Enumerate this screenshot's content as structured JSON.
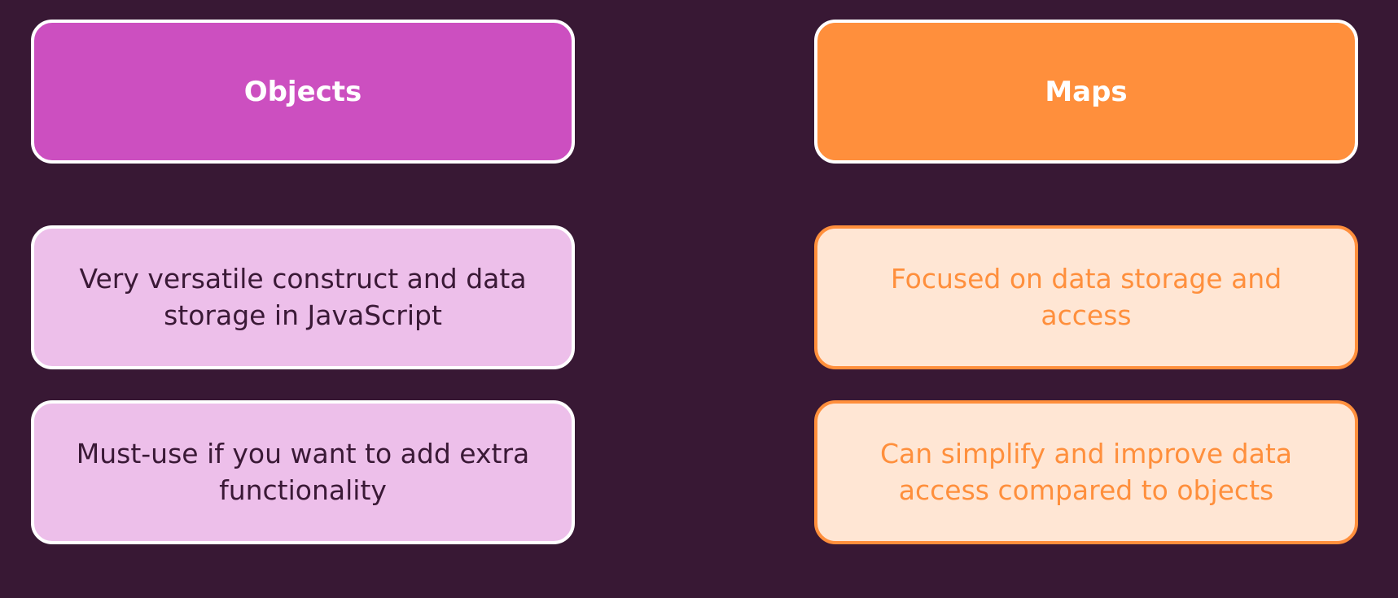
{
  "colors": {
    "background": "#381834",
    "objects_accent": "#cc4fc0",
    "objects_light": "#edbfea",
    "maps_accent": "#ff8f3c",
    "maps_light": "#ffe6d4"
  },
  "objects": {
    "title": "Objects",
    "items": [
      "Very versatile construct and data storage in JavaScript",
      "Must-use if you want to add extra functionality"
    ]
  },
  "maps": {
    "title": "Maps",
    "items": [
      "Focused on data storage and access",
      "Can simplify and improve data access compared to objects"
    ]
  }
}
